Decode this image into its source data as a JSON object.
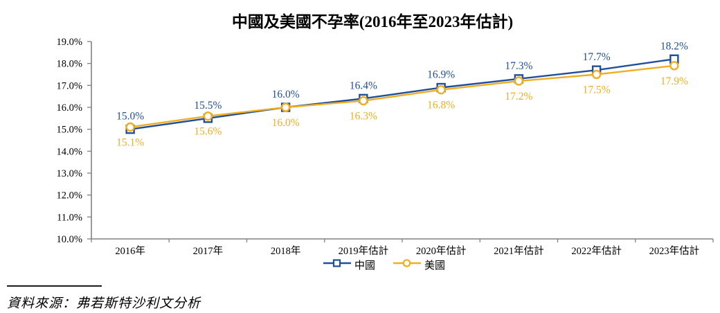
{
  "title": "中國及美國不孕率(2016年至2023年估計)",
  "source": {
    "label": "資料來源：弗若斯特沙利文分析"
  },
  "colors": {
    "china": "#1F4E9B",
    "us": "#EFAD22",
    "axis": "#808080",
    "text": "#000000"
  },
  "chart_data": {
    "type": "line",
    "title": "中國及美國不孕率(2016年至2023年估計)",
    "categories": [
      "2016年",
      "2017年",
      "2018年",
      "2019年估計",
      "2020年估計",
      "2021年估計",
      "2022年估計",
      "2023年估計"
    ],
    "series": [
      {
        "name": "中國",
        "marker": "square",
        "color": "#1F4E9B",
        "label_position": "above",
        "values": [
          15.0,
          15.5,
          16.0,
          16.4,
          16.9,
          17.3,
          17.7,
          18.2
        ],
        "labels": [
          "15.0%",
          "15.5%",
          "16.0%",
          "16.4%",
          "16.9%",
          "17.3%",
          "17.7%",
          "18.2%"
        ]
      },
      {
        "name": "美國",
        "marker": "circle",
        "color": "#EFAD22",
        "label_position": "below",
        "values": [
          15.1,
          15.6,
          16.0,
          16.3,
          16.8,
          17.2,
          17.5,
          17.9
        ],
        "labels": [
          "15.1%",
          "15.6%",
          "16.0%",
          "16.3%",
          "16.8%",
          "17.2%",
          "17.5%",
          "17.9%"
        ]
      }
    ],
    "ylim": [
      10.0,
      19.0
    ],
    "ytick_step": 1.0,
    "ytick_labels": [
      "10.0%",
      "11.0%",
      "12.0%",
      "13.0%",
      "14.0%",
      "15.0%",
      "16.0%",
      "17.0%",
      "18.0%",
      "19.0%"
    ],
    "xlabel": "",
    "ylabel": "",
    "grid": false,
    "legend_position": "bottom"
  }
}
